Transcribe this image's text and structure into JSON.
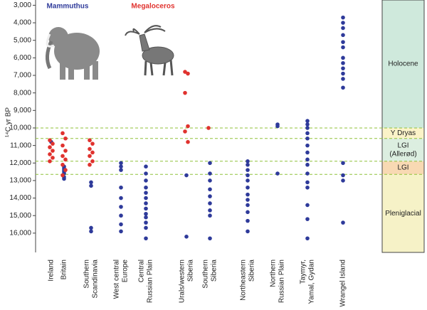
{
  "chart_data": {
    "type": "scatter",
    "y_label": "¹⁴C yr BP",
    "categories": [
      [
        "Ireland"
      ],
      [
        "Britain"
      ],
      [
        "Southern",
        "Scandinavia"
      ],
      [
        "West central",
        "Europe"
      ],
      [
        "Central",
        "Russian Plain"
      ],
      [
        "Urals/western",
        "Siberia"
      ],
      [
        "Southern",
        "Siberia"
      ],
      [
        "Northeastern",
        "Siberia"
      ],
      [
        "Northern",
        "Russian Plain"
      ],
      [
        "Taymyr,",
        "Yamal, Gydan"
      ],
      [
        "Wrangel Island"
      ]
    ],
    "series": [
      {
        "name": "Mammuthus",
        "color": "#2e3a9a",
        "values": [
          [
            10800
          ],
          [
            12200,
            12300,
            12400,
            12500,
            12600,
            12800,
            12900
          ],
          [
            13100,
            13300,
            15700,
            15900
          ],
          [
            12000,
            12200,
            12400,
            13400,
            14000,
            14500,
            15000,
            15500,
            15900
          ],
          [
            12200,
            12600,
            13000,
            13400,
            13700,
            14000,
            14300,
            14600,
            14900,
            15100,
            15400,
            15700,
            16300
          ],
          [
            12700,
            16200
          ],
          [
            12000,
            12600,
            13000,
            13500,
            13900,
            14300,
            14700,
            15000,
            16300
          ],
          [
            11900,
            12100,
            12400,
            12700,
            13000,
            13400,
            13800,
            14100,
            14400,
            14800,
            15300,
            15900
          ],
          [
            9800,
            9900,
            12600
          ],
          [
            9600,
            9800,
            10000,
            10300,
            10600,
            11000,
            11400,
            11800,
            12100,
            12600,
            13100,
            13400,
            14400,
            15200,
            16300
          ],
          [
            3700,
            4000,
            4300,
            4700,
            5100,
            5400,
            6000,
            6300,
            6600,
            6900,
            7200,
            7700,
            12000,
            12700,
            13000,
            15400
          ]
        ]
      },
      {
        "name": "Megaloceros",
        "color": "#e0322e",
        "values": [
          [
            10700,
            10900,
            11100,
            11300,
            11500,
            11700,
            11900
          ],
          [
            10300,
            10600,
            11000,
            11300,
            11600,
            11800,
            12100,
            12400,
            12700
          ],
          [
            10700,
            10900,
            11200,
            11400,
            11600,
            11900,
            12100
          ],
          [],
          [],
          [
            6800,
            6900,
            8000,
            9900,
            10200,
            10800
          ],
          [
            10000
          ],
          [],
          [],
          [],
          []
        ]
      }
    ],
    "ylim": [
      2700,
      17100
    ],
    "yticks": [
      {
        "value": 3000,
        "label": "3,000"
      },
      {
        "value": 4000,
        "label": "4,000"
      },
      {
        "value": 5000,
        "label": "5,000"
      },
      {
        "value": 6000,
        "label": "6,000"
      },
      {
        "value": 7000,
        "label": "7,000"
      },
      {
        "value": 8000,
        "label": "8,000"
      },
      {
        "value": 9000,
        "label": "9,000"
      },
      {
        "value": 10000,
        "label": "10,000"
      },
      {
        "value": 11000,
        "label": "11,000"
      },
      {
        "value": 12000,
        "label": "12,000"
      },
      {
        "value": 13000,
        "label": "13,000"
      },
      {
        "value": 14000,
        "label": "14,000"
      },
      {
        "value": 15000,
        "label": "15,000"
      },
      {
        "value": 16000,
        "label": "16,000"
      }
    ],
    "inverted": true,
    "boundaries": [
      10000,
      10600,
      11900,
      12650
    ],
    "boundary_color": "#8fc23a",
    "periods": [
      {
        "name": [
          "Holocene"
        ],
        "color": "#cfe9dc"
      },
      {
        "name": [
          "Y Dryas"
        ],
        "color": "#fbf3c8"
      },
      {
        "name": [
          "LGI",
          "(Allerød)"
        ],
        "color": "#dceee0"
      },
      {
        "name": [
          "LGI"
        ],
        "color": "#f8d9b3"
      },
      {
        "name": [
          "Pleniglacial"
        ],
        "color": "#f6f2c7"
      }
    ]
  }
}
